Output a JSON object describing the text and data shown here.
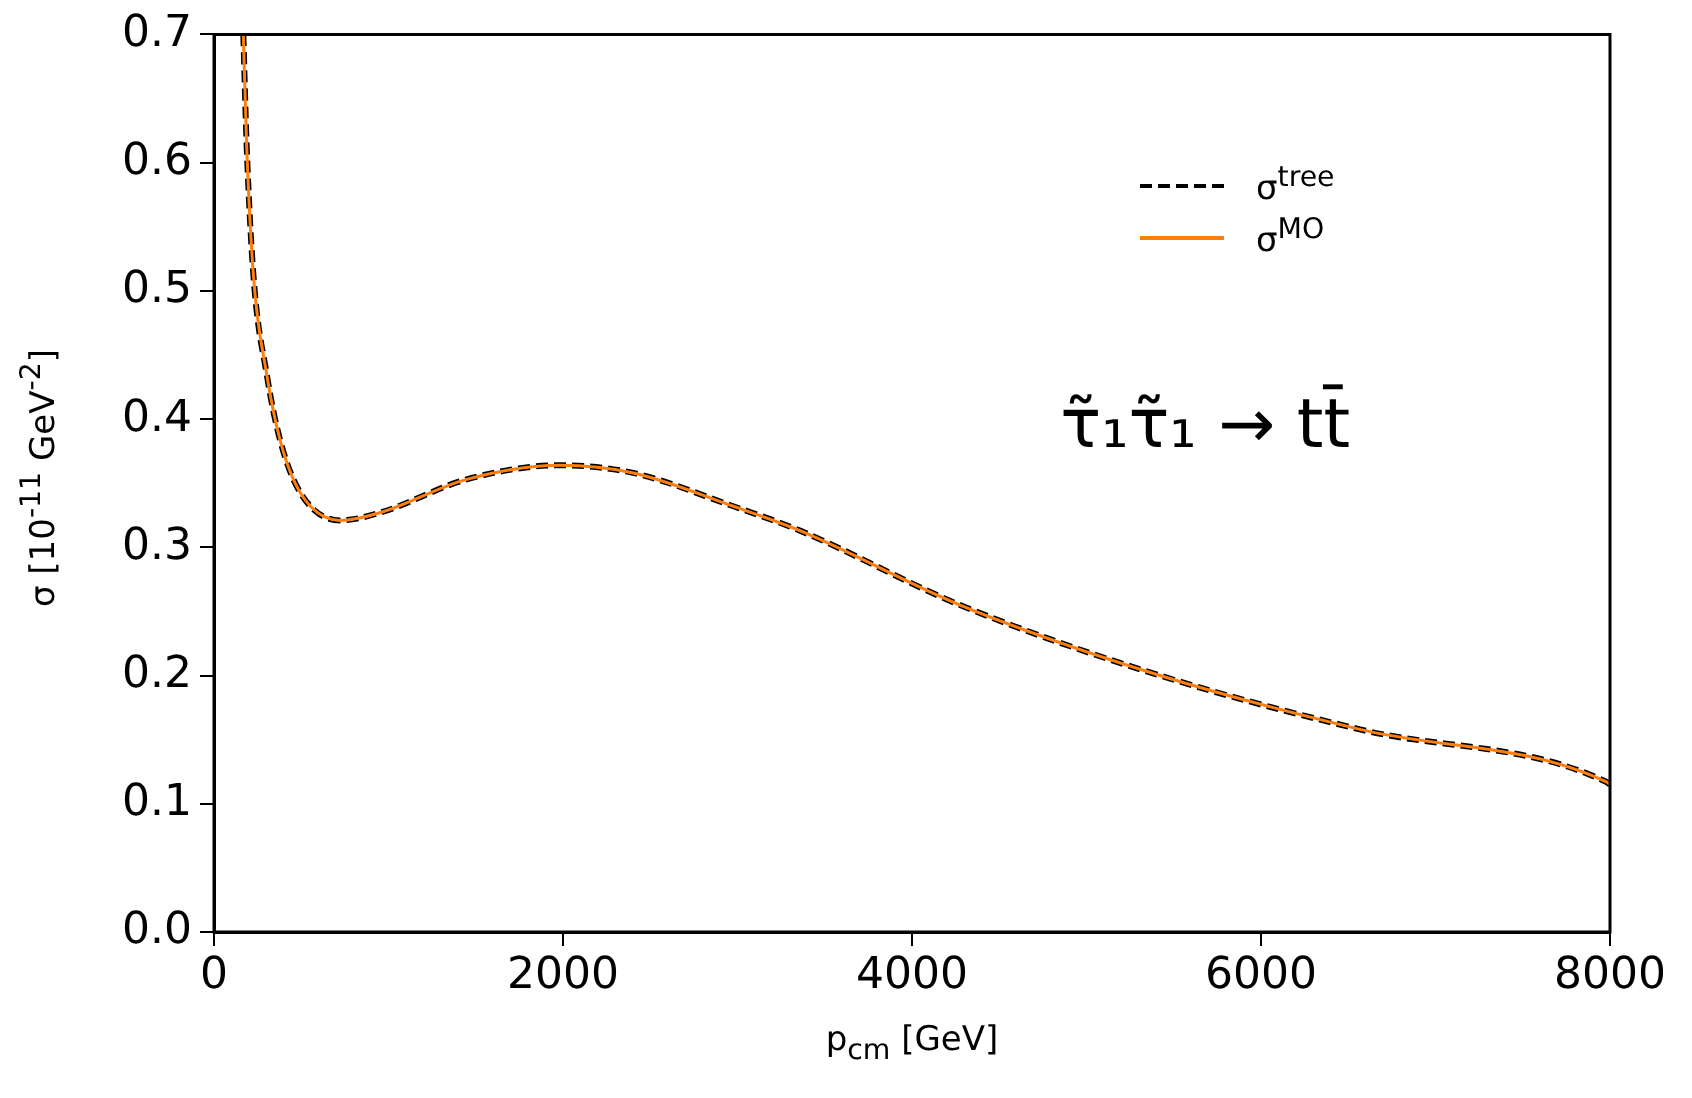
{
  "chart_data": {
    "type": "line",
    "xlabel": "p$_{cm}$ [GeV]",
    "ylabel": "σ [10$^{-11}$ GeV$^{-2}$]",
    "x": [
      168,
      187,
      226,
      302,
      378,
      493,
      722,
      951,
      1448,
      1983,
      2403,
      2976,
      3358,
      4275,
      5421,
      6567,
      7980,
      8000
    ],
    "series": [
      {
        "name": "σ$^{tree}$",
        "color": "#000000",
        "line_style": "dashed",
        "values": [
          0.7,
          0.614,
          0.512,
          0.435,
          0.384,
          0.343,
          0.321,
          0.327,
          0.353,
          0.364,
          0.358,
          0.332,
          0.313,
          0.255,
          0.2,
          0.158,
          0.117,
          0.115
        ]
      },
      {
        "name": "σ$^{MO}$",
        "color": "#ff7f0e",
        "line_style": "solid",
        "values": [
          0.7,
          0.614,
          0.512,
          0.435,
          0.384,
          0.343,
          0.321,
          0.327,
          0.353,
          0.364,
          0.358,
          0.332,
          0.313,
          0.255,
          0.2,
          0.158,
          0.117,
          0.115
        ]
      }
    ],
    "annotations": [
      "τ̃₁τ̃₁ → tt̄"
    ],
    "xlim": [
      0,
      8000
    ],
    "xticks": [
      0,
      2000,
      4000,
      6000,
      8000
    ],
    "ylim": [
      0,
      0.7
    ],
    "yticks": [
      {
        "value": 0,
        "label": "0.0"
      },
      0.1,
      0.2,
      0.3,
      0.4,
      0.5,
      0.6,
      0.7
    ],
    "grid": false,
    "legend": "top right",
    "marker": "none"
  }
}
